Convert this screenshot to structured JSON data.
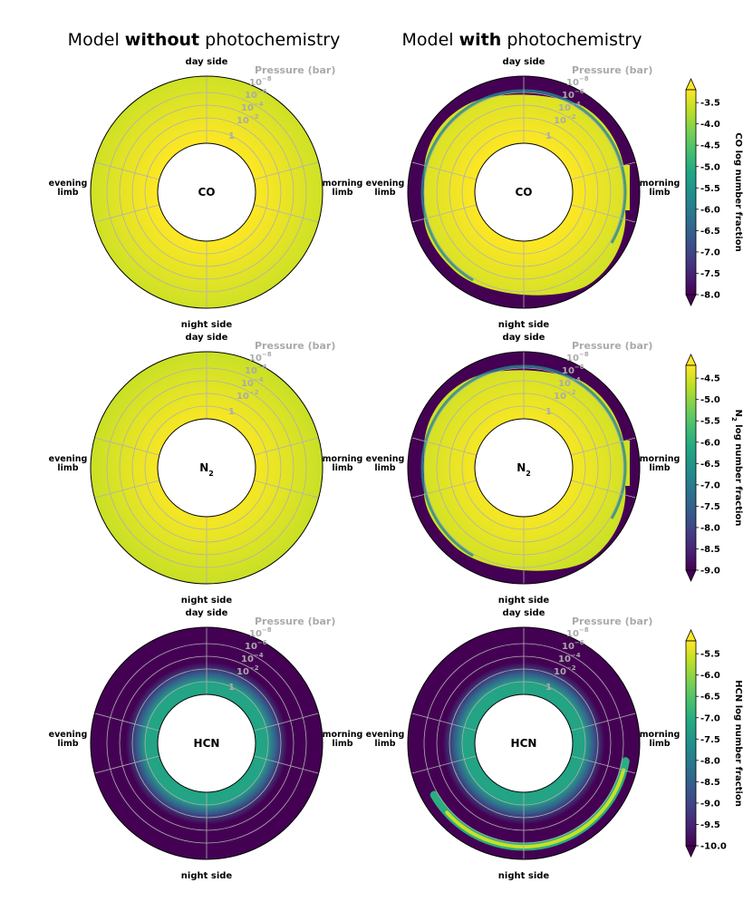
{
  "chart_data": {
    "type": "polar-heatmap",
    "colormap": "viridis",
    "columns": [
      {
        "plain_before": "Model ",
        "bold": "without",
        "plain_after": " photochemistry"
      },
      {
        "plain_before": "Model ",
        "bold": "with",
        "plain_after": " photochemistry"
      }
    ],
    "axis_labels": {
      "day_side": "day side",
      "night_side": "night side",
      "evening_limb_1": "evening",
      "evening_limb_2": "limb",
      "morning_limb_1": "morning",
      "morning_limb_2": "limb"
    },
    "pressure_axis": {
      "title": "Pressure (bar)",
      "ticks": [
        {
          "base": "10",
          "exp": "−8",
          "value": 1e-08
        },
        {
          "base": "10",
          "exp": "−6",
          "value": 1e-06
        },
        {
          "base": "10",
          "exp": "−4",
          "value": 0.0001
        },
        {
          "base": "10",
          "exp": "−2",
          "value": 0.01
        },
        {
          "base": "1",
          "exp": "",
          "value": 1
        }
      ]
    },
    "species": [
      {
        "name": "CO",
        "sub": "",
        "colorbar_label_species": "CO",
        "colorbar_label_sub": "",
        "colorbar_label_rest": " log number fraction",
        "vmin": -8.0,
        "vmax": -3.2,
        "ticks": [
          "-3.5",
          "-4.0",
          "-4.5",
          "-5.0",
          "-5.5",
          "-6.0",
          "-6.5",
          "-7.0",
          "-7.5",
          "-8.0"
        ],
        "tick_values": [
          -3.5,
          -4.0,
          -4.5,
          -5.0,
          -5.5,
          -6.0,
          -6.5,
          -7.0,
          -7.5,
          -8.0
        ],
        "without": {
          "background": -3.55,
          "inner_enhancement": 0.25
        },
        "with": {
          "background": -3.55,
          "depleted": -8.0,
          "upper_layer_pressure_bar": 1e-07
        }
      },
      {
        "name": "N",
        "sub": "2",
        "colorbar_label_species": "N",
        "colorbar_label_sub": "2",
        "colorbar_label_rest": " log number fraction",
        "vmin": -9.0,
        "vmax": -4.2,
        "ticks": [
          "-4.5",
          "-5.0",
          "-5.5",
          "-6.0",
          "-6.5",
          "-7.0",
          "-7.5",
          "-8.0",
          "-8.5",
          "-9.0"
        ],
        "tick_values": [
          -4.5,
          -5.0,
          -5.5,
          -6.0,
          -6.5,
          -7.0,
          -7.5,
          -8.0,
          -8.5,
          -9.0
        ],
        "without": {
          "background": -4.6,
          "inner_enhancement": 0.25
        },
        "with": {
          "background": -4.6,
          "depleted": -9.0,
          "upper_layer_pressure_bar": 1e-07
        }
      },
      {
        "name": "HCN",
        "sub": "",
        "colorbar_label_species": "HCN",
        "colorbar_label_sub": "",
        "colorbar_label_rest": " log number fraction",
        "vmin": -10.0,
        "vmax": -5.2,
        "ticks": [
          "-5.5",
          "-6.0",
          "-6.5",
          "-7.0",
          "-7.5",
          "-8.0",
          "-8.5",
          "-9.0",
          "-9.5",
          "-10.0"
        ],
        "tick_values": [
          -5.5,
          -6.0,
          -6.5,
          -7.0,
          -7.5,
          -8.0,
          -8.5,
          -9.0,
          -9.5,
          -10.0
        ],
        "without": {
          "deep": -7.2,
          "upper": -10.0,
          "transition_pressure_bar": 0.01
        },
        "with": {
          "deep": -7.2,
          "upper": -10.0,
          "transition_pressure_bar": 0.01,
          "photochemical_arc_peak": -5.6,
          "arc_pressure_bar": 1e-07
        }
      }
    ]
  }
}
